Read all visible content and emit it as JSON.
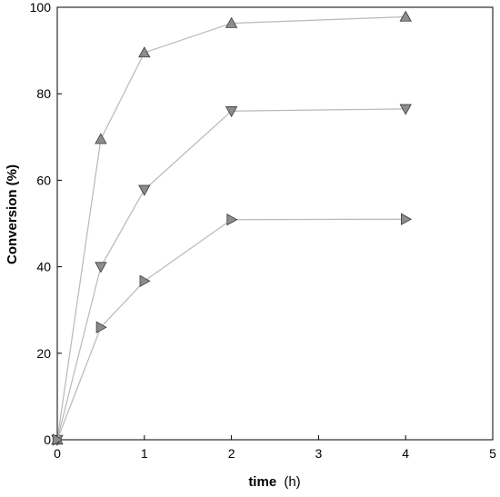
{
  "chart_data": {
    "type": "line",
    "title": "",
    "xlabel": "time",
    "xlabel_unit": "(h)",
    "ylabel": "Conversion (%)",
    "xlim": [
      0,
      5
    ],
    "ylim": [
      0,
      100
    ],
    "xticks": [
      "0",
      "1",
      "2",
      "3",
      "4",
      "5"
    ],
    "yticks": [
      "0",
      "20",
      "40",
      "60",
      "80",
      "100"
    ],
    "grid": false,
    "legend": "none",
    "line_color": "#b8b8b8",
    "marker_fill": "#8c8c8c",
    "marker_stroke": "#3a3a3a",
    "series": [
      {
        "marker": "triangle-up",
        "x": [
          0,
          0.5,
          1,
          2,
          4
        ],
        "y": [
          0,
          69.5,
          89.5,
          96.3,
          97.8
        ]
      },
      {
        "marker": "triangle-down",
        "x": [
          0,
          0.5,
          1,
          2,
          4
        ],
        "y": [
          0,
          40,
          57.8,
          76,
          76.5
        ]
      },
      {
        "marker": "triangle-right",
        "x": [
          0,
          0.5,
          1,
          2,
          4
        ],
        "y": [
          0,
          26,
          36.7,
          50.9,
          51
        ]
      }
    ]
  }
}
